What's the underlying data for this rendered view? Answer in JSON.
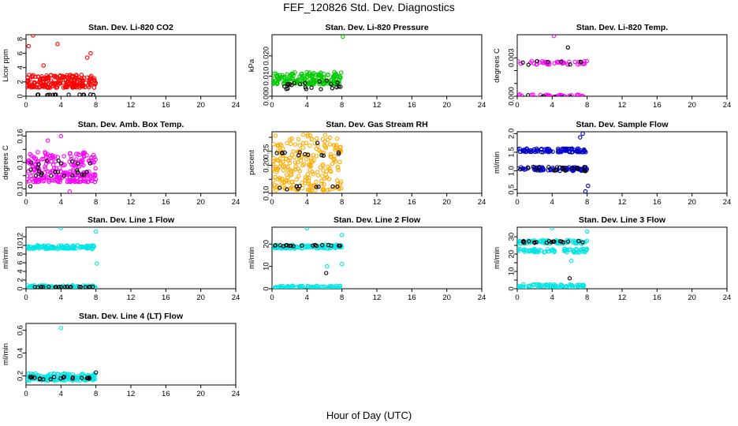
{
  "title": "FEF_120826  Std. Dev. Diagnostics",
  "xlabel": "Hour of Day (UTC)",
  "chart_data": [
    {
      "type": "scatter",
      "title": "Stan. Dev. Li-820 CO2",
      "ylabel": "Licor ppm",
      "xlim": [
        0,
        24
      ],
      "ylim": [
        0,
        8.6
      ],
      "xticks": [
        0,
        4,
        8,
        12,
        16,
        20,
        24
      ],
      "yticks": [
        0,
        2,
        4,
        6,
        8
      ],
      "ytick_labels": [
        "0",
        "2",
        "4",
        "6",
        "8"
      ],
      "series": [
        {
          "name": "main",
          "color": "#ff0000",
          "pattern": "band",
          "x_range": [
            0,
            8
          ],
          "base": 1.2,
          "spread": 1.8,
          "count": 210,
          "outliers": [
            [
              0.3,
              7.0
            ],
            [
              0.8,
              8.5
            ],
            [
              3.6,
              7.3
            ],
            [
              7.4,
              6.0
            ],
            [
              7.0,
              5.4
            ],
            [
              2.0,
              4.3
            ]
          ]
        },
        {
          "name": "ref",
          "color": "#000000",
          "pattern": "line",
          "x_range": [
            0.3,
            8
          ],
          "level": 0.2,
          "jitter": 0.05,
          "count": 16,
          "outliers": []
        }
      ]
    },
    {
      "type": "scatter",
      "title": "Stan. Dev. Li-820 Pressure",
      "ylabel": "kPa",
      "xlim": [
        0,
        24
      ],
      "ylim": [
        0,
        0.0305
      ],
      "xticks": [
        0,
        4,
        8,
        12,
        16,
        20,
        24
      ],
      "yticks": [
        0,
        0.01,
        0.02
      ],
      "ytick_labels": [
        "0.000",
        "0.010",
        "0.020"
      ],
      "series": [
        {
          "name": "main",
          "color": "#00cc00",
          "pattern": "band",
          "x_range": [
            0,
            8
          ],
          "base": 0.006,
          "spread": 0.006,
          "count": 180,
          "outliers": [
            [
              8.1,
              0.0295
            ]
          ]
        },
        {
          "name": "ref",
          "color": "#000000",
          "pattern": "band",
          "x_range": [
            0.3,
            8
          ],
          "base": 0.0035,
          "spread": 0.0045,
          "count": 22,
          "outliers": []
        }
      ]
    },
    {
      "type": "scatter",
      "title": "Stan. Dev. Li-820 Temp.",
      "ylabel": "degrees C",
      "xlim": [
        0,
        24
      ],
      "ylim": [
        0,
        0.0048
      ],
      "xticks": [
        0,
        4,
        8,
        12,
        16,
        20,
        24
      ],
      "yticks": [
        0,
        0.001,
        0.002,
        0.003
      ],
      "ytick_labels": [
        "0.000",
        "",
        "",
        "0.003"
      ],
      "series": [
        {
          "name": "main",
          "color": "#ff00ff",
          "pattern": "twolevel",
          "x_range": [
            0,
            8
          ],
          "levels": [
            0,
            0.0026
          ],
          "count": 90,
          "outliers": [
            [
              4.2,
              0.0047
            ]
          ]
        },
        {
          "name": "ref",
          "color": "#000000",
          "pattern": "twolevel",
          "x_range": [
            0.3,
            8
          ],
          "levels": [
            0,
            0.0026
          ],
          "count": 16,
          "outliers": [
            [
              5.8,
              0.0038
            ]
          ]
        }
      ]
    },
    {
      "type": "scatter",
      "title": "Stan. Dev. Amb. Box Temp.",
      "ylabel": "degrees C",
      "xlim": [
        0,
        24
      ],
      "ylim": [
        0.095,
        0.165
      ],
      "xticks": [
        0,
        4,
        8,
        12,
        16,
        20,
        24
      ],
      "yticks": [
        0.1,
        0.115,
        0.13,
        0.145,
        0.16
      ],
      "ytick_labels": [
        "0.10",
        "",
        "0.13",
        "",
        "0.16"
      ],
      "series": [
        {
          "name": "main",
          "color": "#ff00ff",
          "pattern": "band",
          "x_range": [
            0,
            8
          ],
          "base": 0.108,
          "spread": 0.034,
          "count": 230,
          "outliers": [
            [
              4.0,
              0.16
            ],
            [
              2.5,
              0.155
            ],
            [
              5.0,
              0.097
            ]
          ]
        },
        {
          "name": "ref",
          "color": "#000000",
          "pattern": "band",
          "x_range": [
            0.3,
            8
          ],
          "base": 0.115,
          "spread": 0.018,
          "count": 24,
          "outliers": [
            [
              0.5,
              0.103
            ]
          ]
        }
      ]
    },
    {
      "type": "scatter",
      "title": "Stan. Dev. Gas Stream RH",
      "ylabel": "percent",
      "xlim": [
        0,
        24
      ],
      "ylim": [
        0.1,
        0.32
      ],
      "xticks": [
        0,
        4,
        8,
        12,
        16,
        20,
        24
      ],
      "yticks": [
        0.1,
        0.15,
        0.2,
        0.25,
        0.3
      ],
      "ytick_labels": [
        "0.10",
        "",
        "0.20",
        "0.25",
        ""
      ],
      "series": [
        {
          "name": "main",
          "color": "#ffaa00",
          "pattern": "band",
          "x_range": [
            0,
            8
          ],
          "base": 0.11,
          "spread": 0.2,
          "count": 230,
          "outliers": []
        },
        {
          "name": "ref",
          "color": "#000000",
          "pattern": "twolevel",
          "x_range": [
            0.3,
            8
          ],
          "levels": [
            0.12,
            0.24
          ],
          "count": 22,
          "outliers": [
            [
              5.2,
              0.28
            ]
          ]
        }
      ]
    },
    {
      "type": "scatter",
      "title": "Stan. Dev. Sample Flow",
      "ylabel": "ml/min",
      "xlim": [
        0,
        24
      ],
      "ylim": [
        0.4,
        2.05
      ],
      "xticks": [
        0,
        4,
        8,
        12,
        16,
        20,
        24
      ],
      "yticks": [
        0.5,
        1.0,
        1.5,
        2.0
      ],
      "ytick_labels": [
        "0.5",
        "1.0",
        "1.5",
        "2.0"
      ],
      "series": [
        {
          "name": "main",
          "color": "#0000cc",
          "pattern": "twolevel",
          "x_range": [
            0,
            8
          ],
          "levels": [
            1.05,
            1.55
          ],
          "count": 170,
          "outliers": [
            [
              7.5,
              2.0
            ],
            [
              7.8,
              0.45
            ],
            [
              8.1,
              0.6
            ],
            [
              7.2,
              1.9
            ]
          ]
        },
        {
          "name": "ref",
          "color": "#000000",
          "pattern": "line",
          "x_range": [
            0.3,
            8
          ],
          "level": 1.05,
          "jitter": 0.06,
          "count": 20,
          "outliers": []
        }
      ]
    },
    {
      "type": "scatter",
      "title": "Stan. Dev. Line 1 Flow",
      "ylabel": "ml/min",
      "xlim": [
        0,
        24
      ],
      "ylim": [
        0,
        14.2
      ],
      "xticks": [
        0,
        4,
        8,
        12,
        16,
        20,
        24
      ],
      "yticks": [
        0,
        2,
        4,
        6,
        8,
        10,
        12
      ],
      "ytick_labels": [
        "0",
        "2",
        "4",
        "6",
        "8",
        "10",
        "12"
      ],
      "series": [
        {
          "name": "main",
          "color": "#00e5e5",
          "pattern": "twolevel",
          "x_range": [
            0,
            8
          ],
          "levels": [
            0.4,
            9.6
          ],
          "count": 200,
          "outliers": [
            [
              4.0,
              14.0
            ],
            [
              8.0,
              13.2
            ],
            [
              8.1,
              5.8
            ]
          ]
        },
        {
          "name": "ref",
          "color": "#000000",
          "pattern": "line",
          "x_range": [
            0.3,
            8
          ],
          "level": 0.4,
          "jitter": 0.05,
          "count": 20,
          "outliers": []
        }
      ]
    },
    {
      "type": "scatter",
      "title": "Stan. Dev. Line 2 Flow",
      "ylabel": "ml/min",
      "xlim": [
        0,
        24
      ],
      "ylim": [
        0,
        27.5
      ],
      "xticks": [
        0,
        4,
        8,
        12,
        16,
        20,
        24
      ],
      "yticks": [
        0,
        10,
        20
      ],
      "ytick_labels": [
        "0",
        "10",
        "20"
      ],
      "series": [
        {
          "name": "main",
          "color": "#00e5e5",
          "pattern": "twolevel",
          "x_range": [
            0,
            8
          ],
          "levels": [
            0.5,
            18.8
          ],
          "count": 200,
          "outliers": [
            [
              4.0,
              27.0
            ],
            [
              8.0,
              24.0
            ],
            [
              8.0,
              11.0
            ],
            [
              6.3,
              10.0
            ]
          ]
        },
        {
          "name": "ref",
          "color": "#000000",
          "pattern": "line",
          "x_range": [
            0.3,
            8
          ],
          "level": 19.3,
          "jitter": 0.3,
          "count": 20,
          "outliers": [
            [
              6.2,
              7.0
            ]
          ]
        }
      ]
    },
    {
      "type": "scatter",
      "title": "Stan. Dev. Line 3 Flow",
      "ylabel": "ml/min",
      "xlim": [
        0,
        24
      ],
      "ylim": [
        0,
        35.5
      ],
      "xticks": [
        0,
        4,
        8,
        12,
        16,
        20,
        24
      ],
      "yticks": [
        0,
        5,
        10,
        15,
        20,
        25,
        30
      ],
      "ytick_labels": [
        "0",
        "",
        "10",
        "",
        "20",
        "",
        "30"
      ],
      "series": [
        {
          "name": "main",
          "color": "#00e5e5",
          "pattern": "threelevel",
          "x_range": [
            0,
            8
          ],
          "levels": [
            1.5,
            22,
            27
          ],
          "count": 210,
          "outliers": [
            [
              4.0,
              35.0
            ],
            [
              8.0,
              33.0
            ],
            [
              6.2,
              16.0
            ]
          ]
        },
        {
          "name": "ref",
          "color": "#000000",
          "pattern": "line",
          "x_range": [
            0.3,
            8
          ],
          "level": 27,
          "jitter": 0.6,
          "count": 20,
          "outliers": [
            [
              6.0,
              6.0
            ]
          ]
        }
      ]
    },
    {
      "type": "scatter",
      "title": "Stan. Dev. Line 4 (LT) Flow",
      "ylabel": "ml/min",
      "xlim": [
        0,
        24
      ],
      "ylim": [
        0.12,
        0.66
      ],
      "xticks": [
        0,
        4,
        8,
        12,
        16,
        20,
        24
      ],
      "yticks": [
        0.2,
        0.4,
        0.6
      ],
      "ytick_labels": [
        "0.2",
        "0.4",
        "0.6"
      ],
      "series": [
        {
          "name": "main",
          "color": "#00e5e5",
          "pattern": "band",
          "x_range": [
            0,
            8
          ],
          "base": 0.16,
          "spread": 0.06,
          "count": 150,
          "outliers": [
            [
              4.0,
              0.62
            ]
          ]
        },
        {
          "name": "ref",
          "color": "#000000",
          "pattern": "line",
          "x_range": [
            0.3,
            8
          ],
          "level": 0.18,
          "jitter": 0.012,
          "count": 20,
          "outliers": [
            [
              8.0,
              0.23
            ]
          ]
        }
      ]
    }
  ]
}
